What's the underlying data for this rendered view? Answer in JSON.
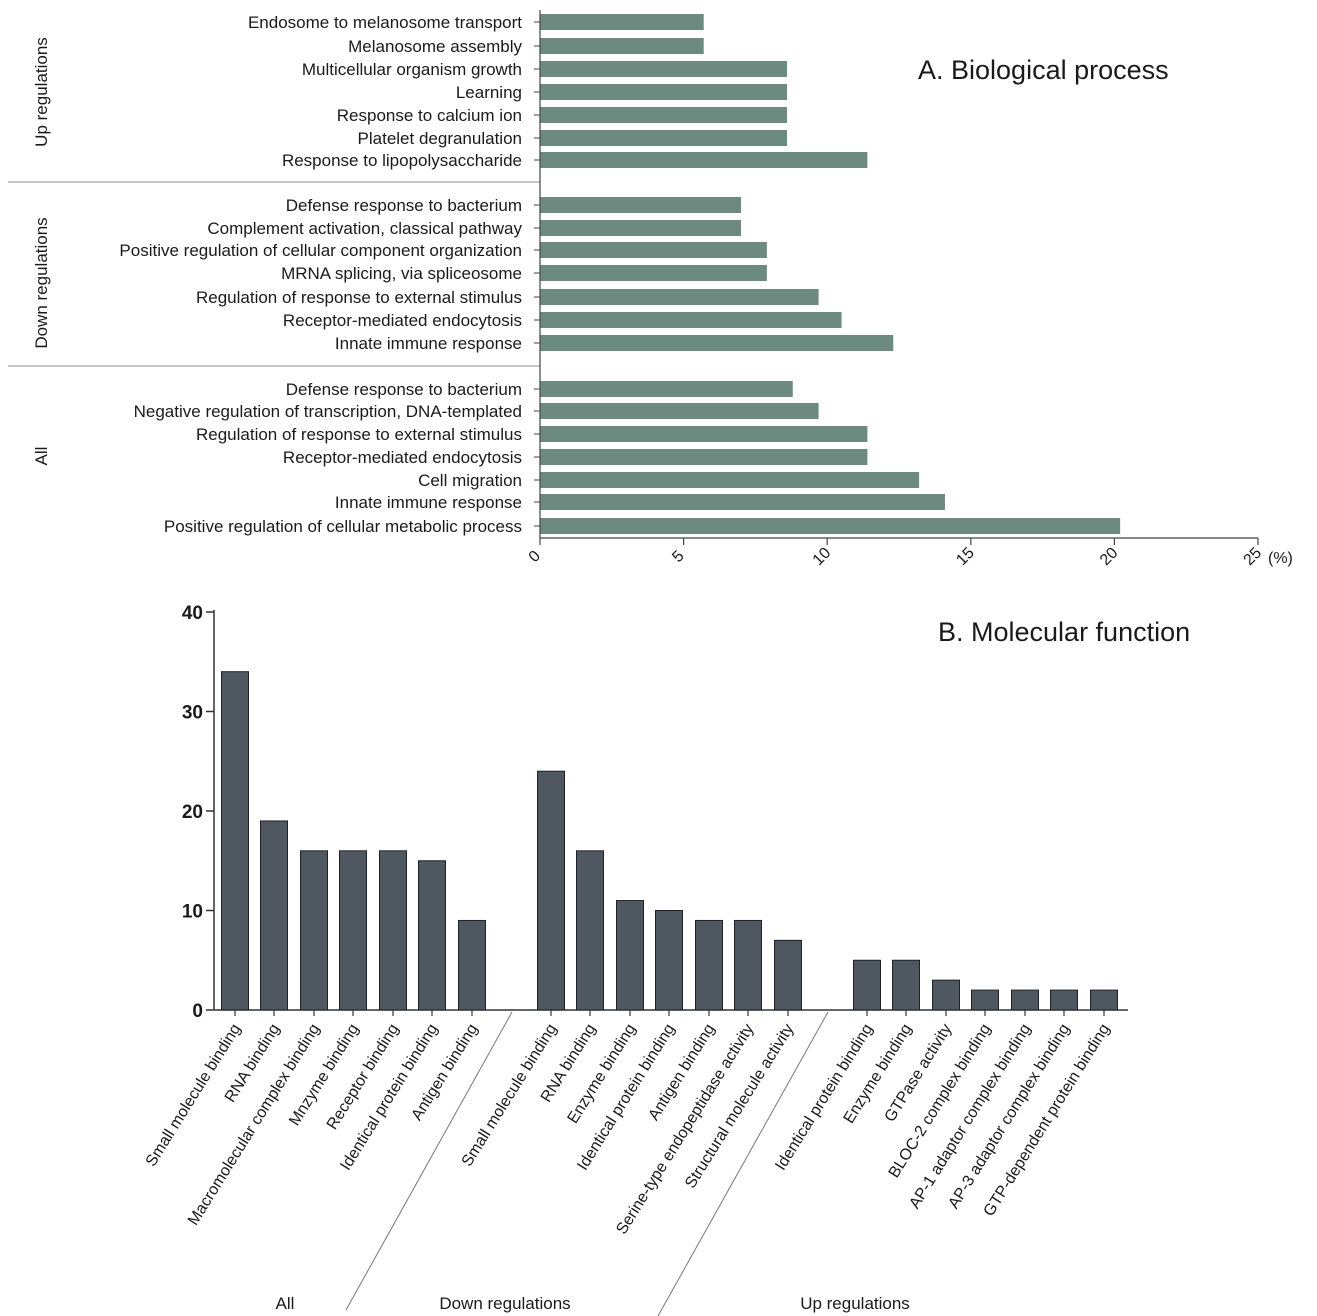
{
  "chart_data": [
    {
      "type": "bar",
      "orientation": "horizontal",
      "title": "A.  Biological process",
      "axis_unit": "(%)",
      "xlim": [
        0,
        25
      ],
      "x_ticks": [
        "0",
        "5",
        "10",
        "15",
        "20",
        "25"
      ],
      "bar_color": "#6c8a80",
      "groups": [
        {
          "name": "Up regulations",
          "items": [
            {
              "label": "Endosome to melanosome transport",
              "value": 5.7
            },
            {
              "label": "Melanosome assembly",
              "value": 5.7
            },
            {
              "label": "Multicellular organism growth",
              "value": 8.6
            },
            {
              "label": "Learning",
              "value": 8.6
            },
            {
              "label": "Response to calcium ion",
              "value": 8.6
            },
            {
              "label": "Platelet degranulation",
              "value": 8.6
            },
            {
              "label": "Response to lipopolysaccharide",
              "value": 11.4
            }
          ]
        },
        {
          "name": "Down regulations",
          "items": [
            {
              "label": "Defense response to bacterium",
              "value": 7.0
            },
            {
              "label": "Complement activation, classical pathway",
              "value": 7.0
            },
            {
              "label": "Positive regulation of cellular component organization",
              "value": 7.9
            },
            {
              "label": "MRNA splicing, via spliceosome",
              "value": 7.9
            },
            {
              "label": "Regulation of response to external stimulus",
              "value": 9.7
            },
            {
              "label": "Receptor-mediated endocytosis",
              "value": 10.5
            },
            {
              "label": "Innate immune response",
              "value": 12.3
            }
          ]
        },
        {
          "name": "All",
          "items": [
            {
              "label": "Defense response to bacterium",
              "value": 8.8
            },
            {
              "label": "Negative regulation of transcription, DNA-templated",
              "value": 9.7
            },
            {
              "label": "Regulation of response to external stimulus",
              "value": 11.4
            },
            {
              "label": "Receptor-mediated endocytosis",
              "value": 11.4
            },
            {
              "label": "Cell migration",
              "value": 13.2
            },
            {
              "label": "Innate immune response",
              "value": 14.1
            },
            {
              "label": "Positive regulation of cellular metabolic process",
              "value": 20.2
            }
          ]
        }
      ]
    },
    {
      "type": "bar",
      "orientation": "vertical",
      "title": "B. Molecular function",
      "ylim": [
        0,
        40
      ],
      "y_ticks": [
        "0",
        "10",
        "20",
        "30",
        "40"
      ],
      "bar_color": "#4f5760",
      "groups": [
        {
          "name": "All",
          "items": [
            {
              "label": "Small molecule binding",
              "value": 34
            },
            {
              "label": "RNA binding",
              "value": 19
            },
            {
              "label": "Macromolecular complex binding",
              "value": 16
            },
            {
              "label": "Mnzyme binding",
              "value": 16
            },
            {
              "label": "Receptor binding",
              "value": 16
            },
            {
              "label": "Identical protein binding",
              "value": 15
            },
            {
              "label": "Antigen binding",
              "value": 9
            }
          ]
        },
        {
          "name": "Down regulations",
          "items": [
            {
              "label": "Small molecule binding",
              "value": 24
            },
            {
              "label": "RNA binding",
              "value": 16
            },
            {
              "label": "Enzyme binding",
              "value": 11
            },
            {
              "label": "Identical protein binding",
              "value": 10
            },
            {
              "label": "Antigen binding",
              "value": 9
            },
            {
              "label": "Serine-type endopeptidase activity",
              "value": 9
            },
            {
              "label": "Structural molecule activity",
              "value": 7
            }
          ]
        },
        {
          "name": "Up regulations",
          "items": [
            {
              "label": "Identical protein binding",
              "value": 5
            },
            {
              "label": "Enzyme binding",
              "value": 5
            },
            {
              "label": "GTPase activity",
              "value": 3
            },
            {
              "label": "BLOC-2 complex binding",
              "value": 2
            },
            {
              "label": "AP-1 adaptor complex binding",
              "value": 2
            },
            {
              "label": "AP-3 adaptor complex binding",
              "value": 2
            },
            {
              "label": "GTP-dependent protein binding",
              "value": 2
            }
          ]
        }
      ]
    }
  ]
}
